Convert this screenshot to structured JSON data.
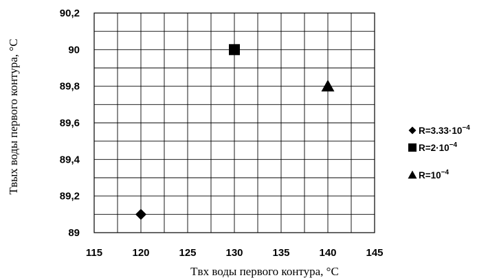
{
  "chart_data": {
    "type": "scatter",
    "title": "",
    "xlabel": "Tвх воды первого контура, °C",
    "ylabel": "Tвых воды первого контура, °C",
    "xlim": [
      115,
      145
    ],
    "ylim": [
      89,
      90.2
    ],
    "x_ticks": [
      115,
      120,
      125,
      130,
      135,
      140,
      145
    ],
    "y_ticks": [
      89,
      89.2,
      89.4,
      89.6,
      89.8,
      90,
      90.2
    ],
    "x_tick_labels": [
      "115",
      "120",
      "125",
      "130",
      "135",
      "140",
      "145"
    ],
    "y_tick_labels": [
      "89",
      "89,2",
      "89,4",
      "89,6",
      "89,8",
      "90",
      "90,2"
    ],
    "grid": true,
    "legend_position": "right",
    "series": [
      {
        "name": "R=3.33·10",
        "exponent": "−4",
        "marker": "diamond",
        "color": "#000000",
        "points": [
          {
            "x": 120,
            "y": 89.1
          }
        ]
      },
      {
        "name": "R=2·10",
        "exponent": "−4",
        "marker": "square",
        "color": "#000000",
        "points": [
          {
            "x": 130,
            "y": 90.0
          }
        ]
      },
      {
        "name": "R=10",
        "exponent": "−4",
        "marker": "triangle",
        "color": "#000000",
        "points": [
          {
            "x": 140,
            "y": 89.8
          }
        ]
      }
    ]
  }
}
